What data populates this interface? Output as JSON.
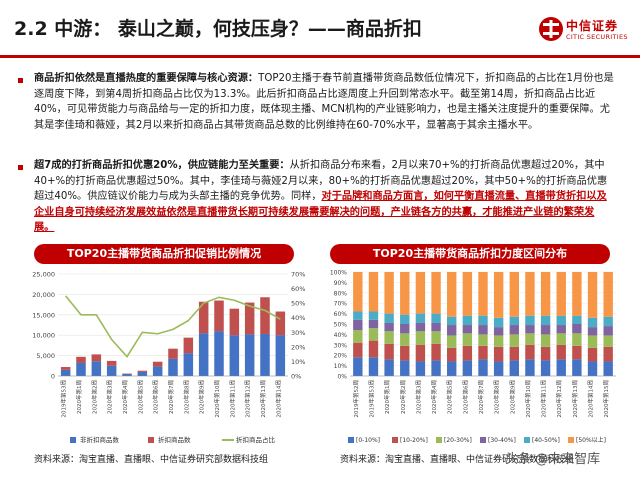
{
  "header": {
    "title": "2.2 中游：  泰山之巅，何技压身？——商品折扣",
    "logo_cn": "中信证券",
    "logo_en": "CITIC SECURITIES"
  },
  "para1": {
    "lead": "商品折扣依然是直播热度的重要保障与核心资源：",
    "text": "TOP20主播于春节前直播带货商品数低位情况下，折扣商品的占比在1月份也是逐周度下降，到第4周折扣商品占比仅为13.3%。此后折扣商品占比逐周度上升回到常态水平。截至第14周，折扣商品占比近40%，可见带货能力与商品给与一定的折扣力度，既体现主播、MCN机构的产业链影响力，也是主播关注度提升的重要保障。尤其是李佳琦和薇娅，其2月以来折扣商品占其带货商品总数的比例维持在60-70%水平，显著高于其余主播水平。"
  },
  "para2": {
    "lead": "超7成的打折商品折扣优惠20%，供应链能力至关重要：",
    "text": "从折扣商品分布来看，2月以来70+%的打折商品优惠超过20%，其中40+%的打折商品优惠超过50%。其中，李佳琦与薇娅2月以来，80+%的打折商品优惠超过20%，其中50+%的打折商品优惠超过40%。供应链议价能力与成为头部主播的竞争优势。同样，",
    "highlight": "对于品牌和商品方面言，如何平衡直播流量、直播带货折扣以及企业自身可持续经济发展效益依然是直播带货长期可持续发展需要解决的问题，产业链各方的共赢，才能推进产业链的繁荣发展。"
  },
  "chart1_title": "TOP20主播带货商品折扣促销比例情况",
  "chart2_title": "TOP20主播带货商品折扣力度区间分布",
  "source1": "资料来源：淘宝直播、直播眼、中信证券研究部数据科技组",
  "source2": "资料来源：淘宝直播、直播眼、中信证券研究部数据科技组",
  "watermark": "头条 @未来智库",
  "chart_data": [
    {
      "type": "bar",
      "stacked": true,
      "secondary_type": "line",
      "categories": [
        "2019年第53周",
        "2020年第1周",
        "2020年第2周",
        "2020年第3周",
        "2020年第4周",
        "2020年第5周",
        "2020年第6周",
        "2020年第7周",
        "2020年第8周",
        "2020年第9周",
        "2020年第10周",
        "2020年第11周",
        "2020年第12周",
        "2020年第13周",
        "2020年第14周"
      ],
      "series": [
        {
          "name": "非折扣商品数",
          "color": "#4472c4",
          "values": [
            1500,
            3200,
            3600,
            2500,
            500,
            1000,
            2300,
            4200,
            5600,
            10500,
            11000,
            10000,
            10200,
            10300,
            10000
          ]
        },
        {
          "name": "折扣商品数",
          "color": "#c0504d",
          "values": [
            700,
            1500,
            1700,
            1200,
            100,
            300,
            1200,
            2500,
            3800,
            7700,
            7500,
            6500,
            7800,
            9000,
            5800
          ]
        },
        {
          "name": "折扣商品占比",
          "color": "#9bbb59",
          "axis": "right",
          "values": [
            0.55,
            0.42,
            0.42,
            0.25,
            0.133,
            0.3,
            0.29,
            0.32,
            0.38,
            0.5,
            0.54,
            0.52,
            0.48,
            0.45,
            0.39
          ]
        }
      ],
      "yticks": [
        "0",
        "5,000",
        "10,000",
        "15,000",
        "20,000",
        "25,000"
      ],
      "ylim": [
        0,
        25000
      ],
      "y2ticks": [
        "0%",
        "10%",
        "20%",
        "30%",
        "40%",
        "50%",
        "60%",
        "70%"
      ],
      "y2lim": [
        0,
        0.7
      ],
      "legend_position": "bottom"
    },
    {
      "type": "bar",
      "stacked_percent": true,
      "categories": [
        "2019年第52周",
        "2019年第53周",
        "2020年第1周",
        "2020年第2周",
        "2020年第3周",
        "2020年第4周",
        "2020年第5周",
        "2020年第6周",
        "2020年第7周",
        "2020年第8周",
        "2020年第9周",
        "2020年第10周",
        "2020年第11周",
        "2020年第12周",
        "2020年第13周",
        "2020年第14周",
        "2020年第15周"
      ],
      "series": [
        {
          "name": "[0-10%]",
          "color": "#4472c4",
          "values": [
            18,
            18,
            16,
            15,
            14,
            15,
            14,
            15,
            16,
            14,
            15,
            16,
            15,
            16,
            16,
            14,
            14
          ]
        },
        {
          "name": "[10-20%]",
          "color": "#c0504d",
          "values": [
            14,
            16,
            15,
            14,
            16,
            16,
            13,
            14,
            13,
            14,
            13,
            14,
            13,
            14,
            13,
            13,
            14
          ]
        },
        {
          "name": "[20-30%]",
          "color": "#9bbb59",
          "values": [
            12,
            12,
            12,
            12,
            13,
            12,
            12,
            12,
            11,
            11,
            12,
            11,
            12,
            11,
            12,
            12,
            11
          ]
        },
        {
          "name": "[30-40%]",
          "color": "#8064a2",
          "values": [
            10,
            8,
            8,
            9,
            8,
            8,
            10,
            8,
            9,
            8,
            9,
            8,
            9,
            8,
            9,
            8,
            9
          ]
        },
        {
          "name": "[40-50%]",
          "color": "#4bacc6",
          "values": [
            8,
            8,
            9,
            9,
            9,
            9,
            8,
            9,
            9,
            9,
            8,
            9,
            9,
            9,
            8,
            9,
            9
          ]
        },
        {
          "name": "[50%以上]",
          "color": "#f79646",
          "values": [
            38,
            38,
            40,
            41,
            40,
            40,
            43,
            42,
            42,
            44,
            43,
            42,
            42,
            42,
            42,
            44,
            43
          ]
        }
      ],
      "yticks": [
        "0%",
        "10%",
        "20%",
        "30%",
        "40%",
        "50%",
        "60%",
        "70%",
        "80%",
        "90%",
        "100%"
      ],
      "ylim": [
        0,
        1
      ],
      "legend_position": "bottom"
    }
  ]
}
